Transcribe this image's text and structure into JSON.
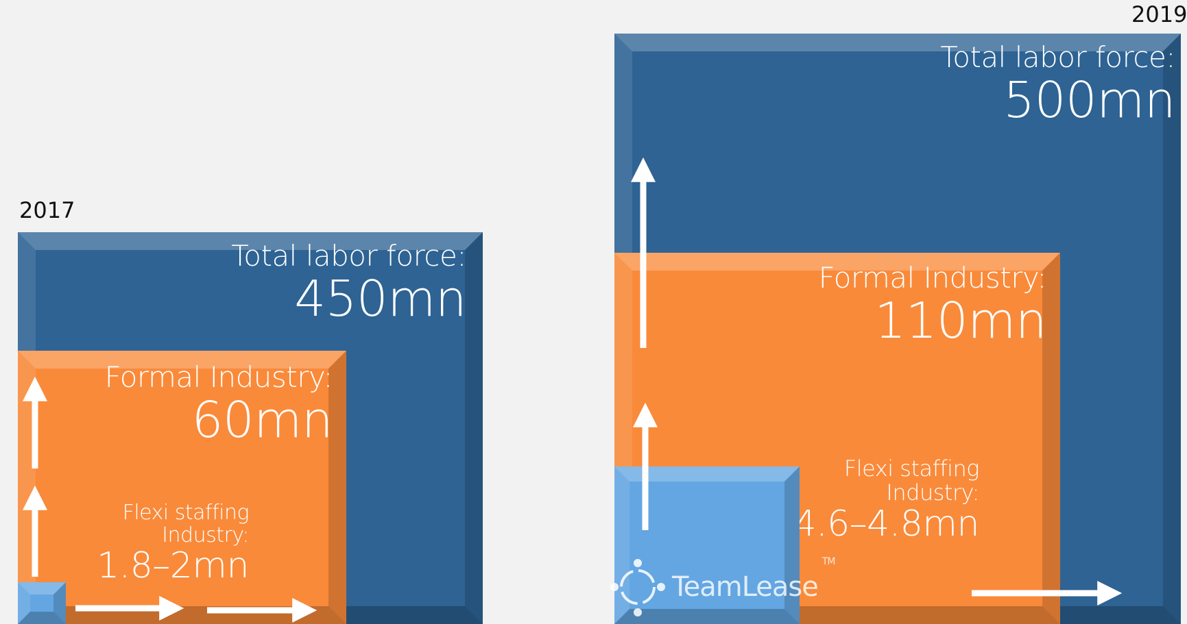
{
  "panel_2017": {
    "year": "2017",
    "total": {
      "title": "Total labor force:",
      "value": "450mn"
    },
    "formal": {
      "title": "Formal Industry:",
      "value": "60mn"
    },
    "flexi": {
      "title_line1": "Flexi staffing",
      "title_line2": "Industry:",
      "value": "1.8–2mn"
    }
  },
  "panel_2019": {
    "year": "2019",
    "total": {
      "title": "Total labor force:",
      "value": "500mn"
    },
    "formal": {
      "title": "Formal Industry:",
      "value": "110mn"
    },
    "flexi": {
      "title_line1": "Flexi staffing",
      "title_line2": "Industry:",
      "value": "4.6–4.8mn"
    }
  },
  "logo": {
    "text": "TeamLease",
    "tm": "TM"
  },
  "colors": {
    "navy": "#2e6393",
    "orange": "#f98a3a",
    "light_blue": "#63a6e2",
    "background": "#f2f2f2"
  }
}
